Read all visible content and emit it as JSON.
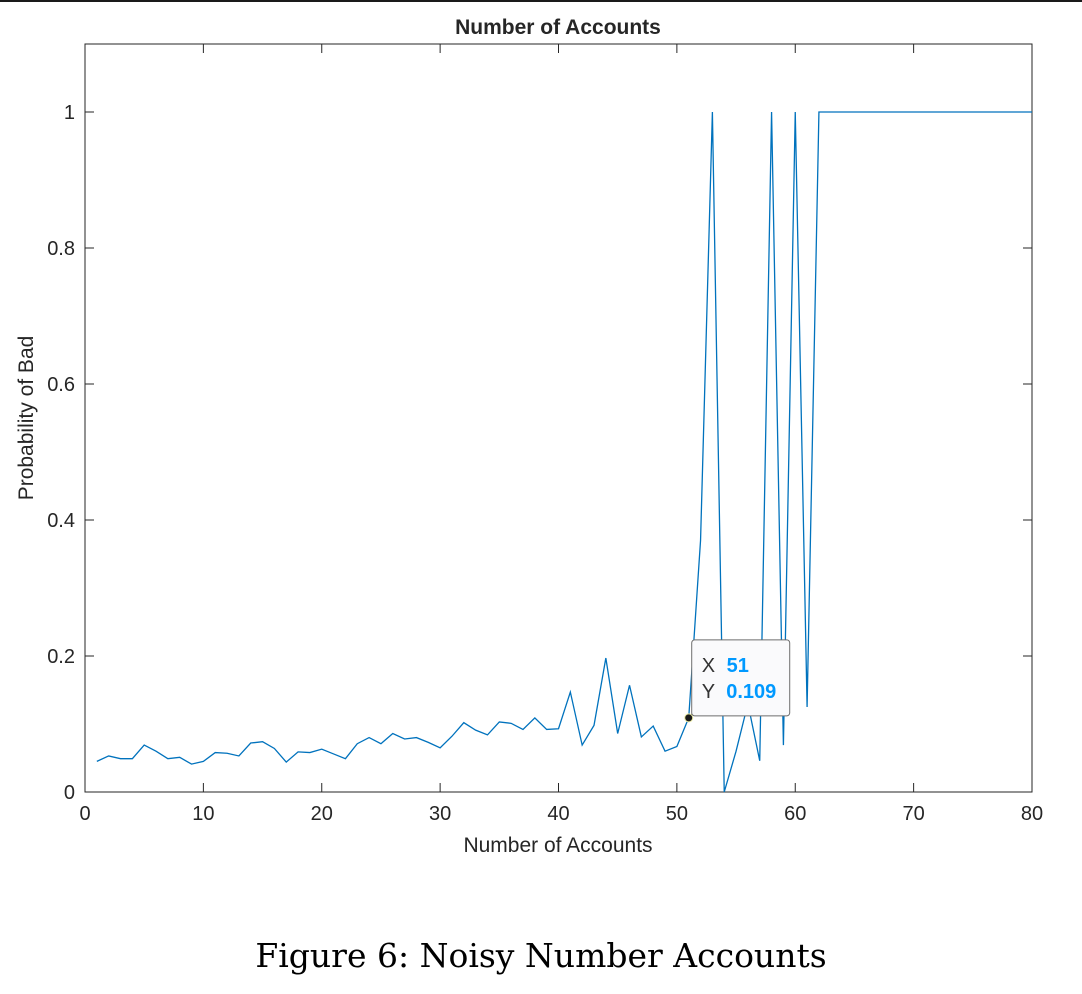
{
  "chart_data": {
    "type": "line",
    "title": "Number of Accounts",
    "xlabel": "Number of Accounts",
    "ylabel": "Probability of Bad",
    "xlim": [
      0,
      80
    ],
    "ylim": [
      0,
      1.1
    ],
    "xticks": [
      0,
      10,
      20,
      30,
      40,
      50,
      60,
      70,
      80
    ],
    "yticks": [
      0,
      0.2,
      0.4,
      0.6,
      0.8,
      1
    ],
    "xtick_labels": [
      "0",
      "10",
      "20",
      "30",
      "40",
      "50",
      "60",
      "70",
      "80"
    ],
    "ytick_labels": [
      "0",
      "0.2",
      "0.4",
      "0.6",
      "0.8",
      "1"
    ],
    "grid": false,
    "line_color": "#0072BD",
    "series": [
      {
        "x": [
          1,
          2,
          3,
          4,
          5,
          6,
          7,
          8,
          9,
          10,
          11,
          12,
          13,
          14,
          15,
          16,
          17,
          18,
          19,
          20,
          21,
          22,
          23,
          24,
          25,
          26,
          27,
          28,
          29,
          30,
          31,
          32,
          33,
          34,
          35,
          36,
          37,
          38,
          39,
          40,
          41,
          42,
          43,
          44,
          45,
          46,
          47,
          48,
          49,
          50,
          51,
          52,
          53,
          54,
          55,
          56,
          57,
          58,
          59,
          60,
          61,
          62,
          63,
          64,
          65,
          66,
          67,
          68,
          69,
          70,
          71,
          72,
          73,
          74,
          75,
          76,
          77,
          78,
          79,
          80
        ],
        "values": [
          0.045,
          0.053,
          0.049,
          0.049,
          0.069,
          0.06,
          0.049,
          0.051,
          0.041,
          0.045,
          0.058,
          0.057,
          0.053,
          0.072,
          0.074,
          0.064,
          0.044,
          0.059,
          0.058,
          0.063,
          0.056,
          0.049,
          0.071,
          0.08,
          0.071,
          0.086,
          0.078,
          0.08,
          0.073,
          0.065,
          0.082,
          0.102,
          0.091,
          0.084,
          0.103,
          0.101,
          0.092,
          0.109,
          0.092,
          0.093,
          0.147,
          0.069,
          0.098,
          0.197,
          0.086,
          0.157,
          0.081,
          0.097,
          0.06,
          0.067,
          0.109,
          0.37,
          1.0,
          0.0,
          0.06,
          0.13,
          0.046,
          1.0,
          0.069,
          1.0,
          0.125,
          1.0,
          1.0,
          1.0,
          1.0,
          1.0,
          1.0,
          1.0,
          1.0,
          1.0,
          1.0,
          1.0,
          1.0,
          1.0,
          1.0,
          1.0,
          1.0,
          1.0,
          1.0,
          1.0
        ]
      }
    ],
    "datatip": {
      "x": 51,
      "y": 0.109,
      "x_label": "X",
      "y_label": "Y",
      "x_text": "51",
      "y_text": "0.109",
      "value_color": "#0099FF"
    }
  },
  "caption": "Figure 6: Noisy Number Accounts"
}
